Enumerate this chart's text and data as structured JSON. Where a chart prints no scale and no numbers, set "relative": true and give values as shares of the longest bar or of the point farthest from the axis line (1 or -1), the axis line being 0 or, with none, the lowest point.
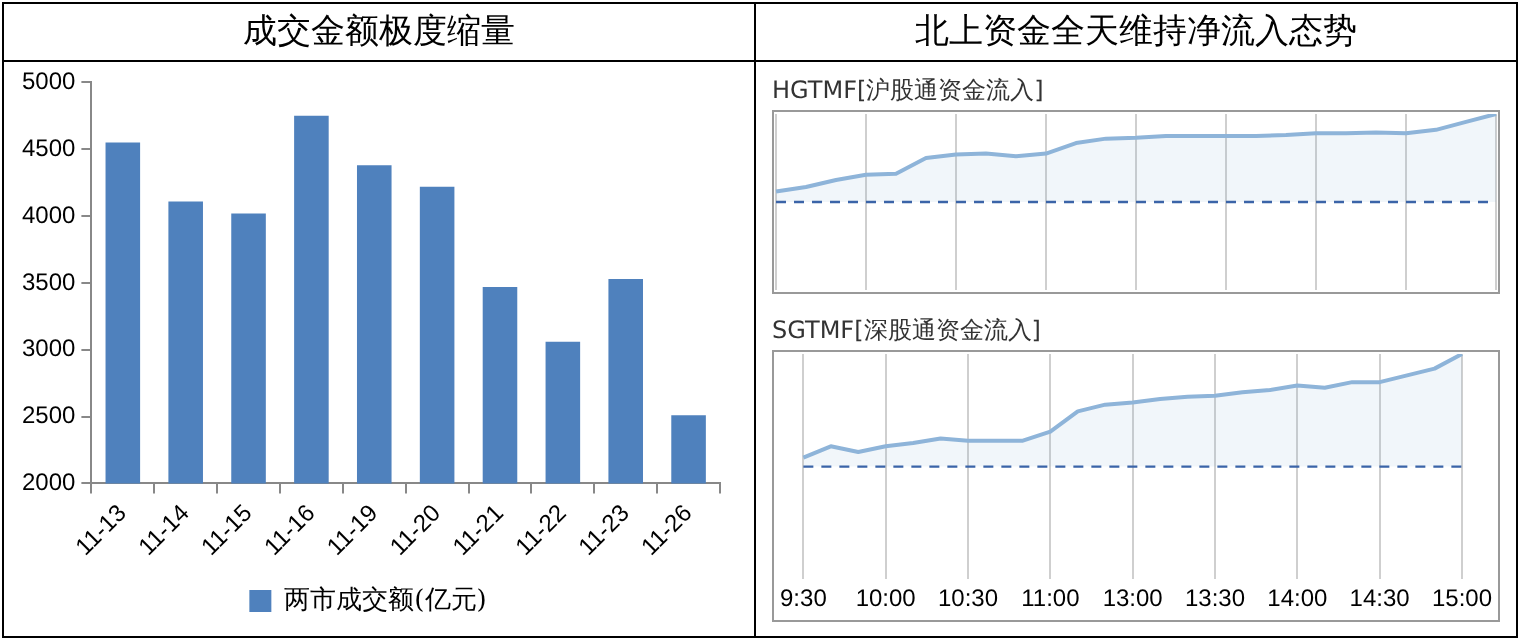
{
  "chart_data": [
    {
      "type": "bar",
      "title": "成交金额极度缩量",
      "categories": [
        "11-13",
        "11-14",
        "11-15",
        "11-16",
        "11-19",
        "11-20",
        "11-21",
        "11-22",
        "11-23",
        "11-26"
      ],
      "series": [
        {
          "name": "两市成交额(亿元)",
          "color": "#4f81bd",
          "values": [
            4550,
            4110,
            4020,
            4750,
            4380,
            4220,
            3470,
            3060,
            3530,
            2510
          ]
        }
      ],
      "ylim": [
        2000,
        5000
      ],
      "yticks": [
        2000,
        2500,
        3000,
        3500,
        4000,
        4500,
        5000
      ],
      "grid": false,
      "legend": "bottom"
    },
    {
      "type": "area",
      "title": "北上资金全天维持净流入态势",
      "subtitle": "HGTMF[沪股通资金流入]",
      "relative": true,
      "tick_labels": false,
      "grid": "x",
      "categories": [
        null,
        null,
        null,
        null,
        null,
        null,
        null,
        null,
        null,
        null,
        null,
        null,
        null,
        null,
        null,
        null,
        null,
        null,
        null,
        null,
        null,
        null,
        null,
        null,
        null
      ],
      "series": [
        {
          "color": "#8eb4d9",
          "values": [
            0.12,
            0.17,
            0.25,
            0.31,
            0.32,
            0.5,
            0.54,
            0.55,
            0.52,
            0.55,
            0.67,
            0.72,
            0.73,
            0.75,
            0.75,
            0.75,
            0.75,
            0.76,
            0.78,
            0.78,
            0.79,
            0.78,
            0.82,
            0.91,
            1
          ]
        }
      ],
      "ref_lines": [
        {
          "axis": "y",
          "value": 0,
          "color": "#3b64a8",
          "line_style": "dashed"
        }
      ]
    },
    {
      "type": "area",
      "title": "SGTMF[深股通资金流入]",
      "relative": true,
      "tick_labels": "x",
      "grid": "x",
      "categories": [
        "9:30",
        null,
        null,
        "10:00",
        null,
        null,
        "10:30",
        null,
        null,
        "11:00",
        null,
        null,
        "13:00",
        null,
        null,
        "13:30",
        null,
        null,
        "14:00",
        null,
        null,
        "14:30",
        null,
        null,
        "15:00"
      ],
      "series": [
        {
          "color": "#8eb4d9",
          "values": [
            0.08,
            0.18,
            0.13,
            0.18,
            0.21,
            0.25,
            0.23,
            0.23,
            0.23,
            0.31,
            0.49,
            0.55,
            0.57,
            0.6,
            0.62,
            0.63,
            0.66,
            0.68,
            0.72,
            0.7,
            0.75,
            0.75,
            0.81,
            0.87,
            1
          ]
        }
      ],
      "ref_lines": [
        {
          "axis": "y",
          "value": 0,
          "color": "#3b64a8",
          "line_style": "dashed"
        }
      ]
    }
  ]
}
